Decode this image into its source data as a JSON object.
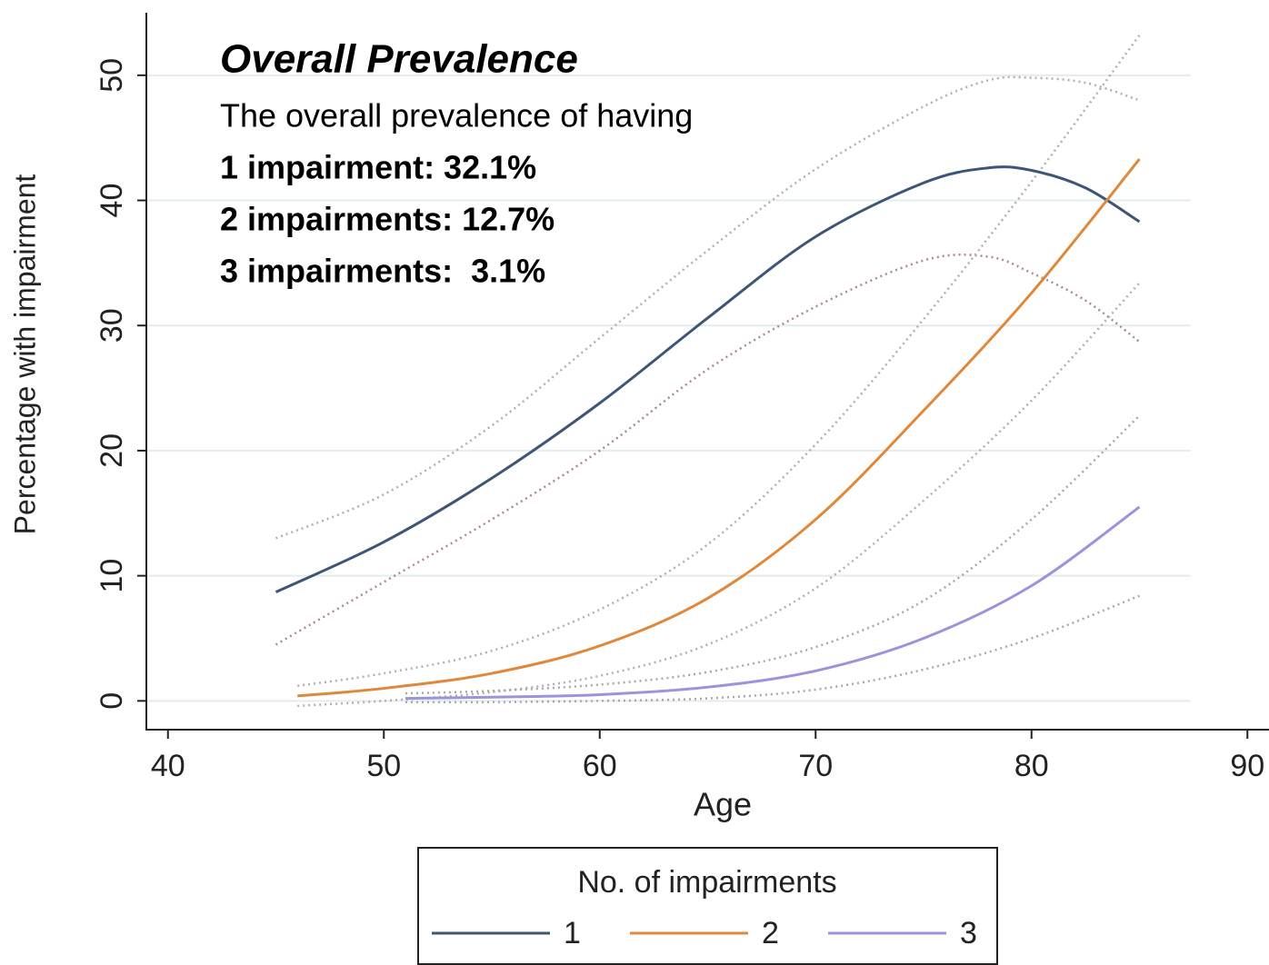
{
  "chart_data": {
    "type": "line",
    "annotation": {
      "title": "Overall Prevalence",
      "lines": [
        "The overall prevalence of having",
        "1 impairment: 32.1%",
        "2 impairments: 12.7%",
        "3 impairments:  3.1%"
      ]
    },
    "x_label": "Age",
    "y_label": "Percentage with impairment",
    "xlim": [
      39,
      91
    ],
    "ylim": [
      -2.3,
      55
    ],
    "xticks": [
      40,
      50,
      60,
      70,
      80,
      90
    ],
    "yticks": [
      0,
      10,
      20,
      30,
      40,
      50
    ],
    "grid": true,
    "legend_title": "No. of impairments",
    "series": [
      {
        "name": "1",
        "color": "#3d5678",
        "x": [
          45,
          50,
          55,
          60,
          65,
          70,
          75,
          78,
          80,
          82.5,
          85
        ],
        "values": [
          8.7,
          12.7,
          17.8,
          23.8,
          30.6,
          37.1,
          41.4,
          42.6,
          42.4,
          41.0,
          38.3
        ],
        "upper": [
          13,
          16.5,
          22,
          29,
          36,
          42.5,
          47.5,
          49.6,
          49.8,
          49.4,
          48
        ],
        "upper_color": "#b0b0b0",
        "lower": [
          4.5,
          9.5,
          14.5,
          20,
          26.5,
          31.5,
          35.2,
          35.5,
          34.2,
          32.0,
          28.7
        ],
        "lower_color": "#b08888"
      },
      {
        "name": "2",
        "color": "#e0883a",
        "x": [
          46,
          50,
          55,
          60,
          65,
          70,
          75,
          80,
          85
        ],
        "values": [
          0.4,
          1.0,
          2.2,
          4.4,
          8.2,
          14.5,
          23.2,
          32.6,
          43.3
        ],
        "upper": [
          1.2,
          2.2,
          4.0,
          7.3,
          12.5,
          20.5,
          30.5,
          41.5,
          53.2
        ],
        "upper_color": "#b0b0b0",
        "lower": [
          -0.4,
          0.0,
          0.7,
          2.0,
          4.5,
          9.0,
          16.0,
          24.0,
          33.4
        ],
        "lower_color": "#b0b0b0"
      },
      {
        "name": "3",
        "color": "#9a94dd",
        "x": [
          51,
          55,
          60,
          65,
          70,
          75,
          80,
          85
        ],
        "values": [
          0.2,
          0.3,
          0.5,
          1.1,
          2.4,
          5.0,
          9.2,
          15.5
        ],
        "upper": [
          0.6,
          0.8,
          1.3,
          2.3,
          4.3,
          8.0,
          14.5,
          22.8
        ],
        "upper_color": "#a8a8a8",
        "lower": [
          -0.1,
          -0.1,
          0,
          0.2,
          0.9,
          2.5,
          5.0,
          8.4
        ],
        "lower_color": "#a8a8a8"
      }
    ]
  }
}
